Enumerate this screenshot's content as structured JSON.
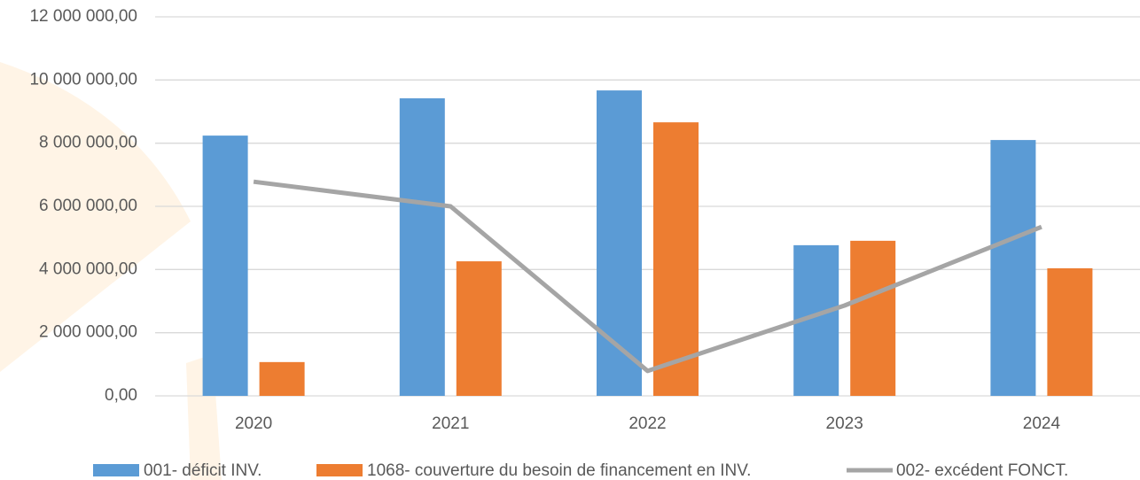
{
  "chart_data": {
    "type": "bar",
    "categories": [
      "2020",
      "2021",
      "2022",
      "2023",
      "2024"
    ],
    "series": [
      {
        "name": "001- déficit INV.",
        "color": "#5b9bd5",
        "type": "bar",
        "values": [
          8240000,
          9420000,
          9670000,
          4770000,
          8100000
        ]
      },
      {
        "name": "1068- couverture du besoin de financement en INV.",
        "color": "#ed7d31",
        "type": "bar",
        "values": [
          1070000,
          4260000,
          8660000,
          4910000,
          4040000
        ]
      },
      {
        "name": "002- excédent FONCT.",
        "color": "#a5a5a5",
        "type": "line",
        "values": [
          6780000,
          6000000,
          790000,
          2860000,
          5350000
        ]
      }
    ],
    "ylim": [
      0,
      12000000
    ],
    "yticks": [
      {
        "value": 0,
        "label": "0,00"
      },
      {
        "value": 2000000,
        "label": "2 000 000,00"
      },
      {
        "value": 4000000,
        "label": "4 000 000,00"
      },
      {
        "value": 6000000,
        "label": "6 000 000,00"
      },
      {
        "value": 8000000,
        "label": "8 000 000,00"
      },
      {
        "value": 10000000,
        "label": "10 000 000,00"
      },
      {
        "value": 12000000,
        "label": "12 000 000,00"
      }
    ],
    "grid": true
  }
}
